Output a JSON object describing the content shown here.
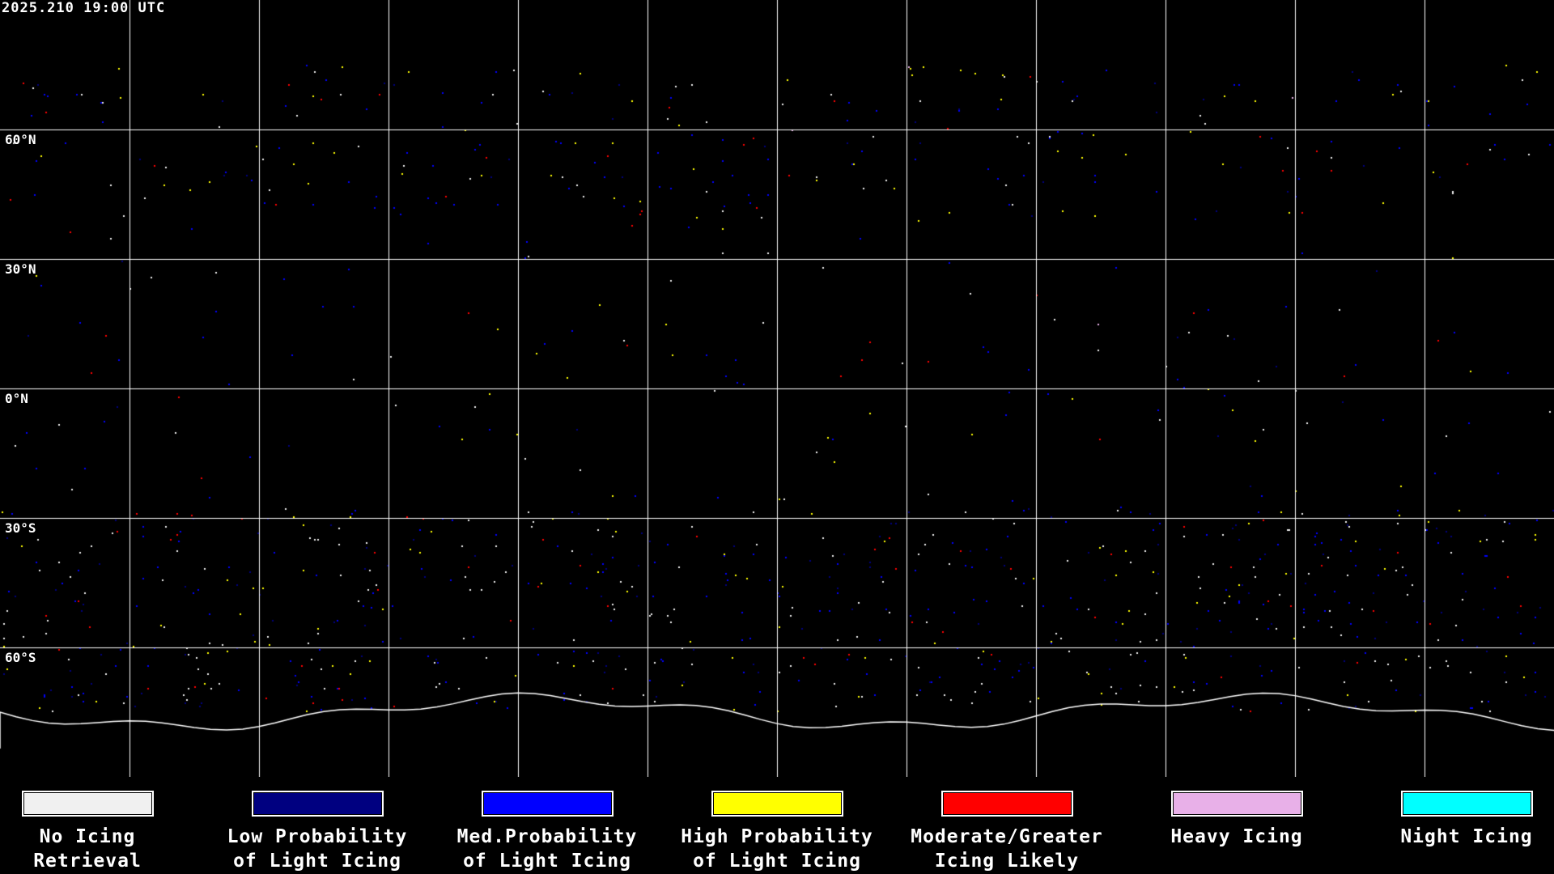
{
  "header": {
    "timestamp": "2025.210 19:00 UTC"
  },
  "map": {
    "projection": "equirectangular",
    "grid_spacing_deg": 30,
    "lat_labels": [
      "60°N",
      "30°N",
      "0°N",
      "30°S",
      "60°S"
    ],
    "background_color": "#000000",
    "coastline_color": "#ffffff",
    "grid_color": "#ffffff"
  },
  "legend": {
    "items": [
      {
        "line1": "No Icing",
        "line2": "Retrieval",
        "color": "#f0f0f0"
      },
      {
        "line1": "Low Probability",
        "line2": "of Light Icing",
        "color": "#000080"
      },
      {
        "line1": "Med.Probability",
        "line2": "of Light Icing",
        "color": "#0000ff"
      },
      {
        "line1": "High Probability",
        "line2": "of Light Icing",
        "color": "#ffff00"
      },
      {
        "line1": "Moderate/Greater",
        "line2": "Icing Likely",
        "color": "#ff0000"
      },
      {
        "line1": "Heavy Icing",
        "line2": "",
        "color": "#e8b0e8"
      },
      {
        "line1": "Night Icing",
        "line2": "",
        "color": "#00ffff"
      }
    ]
  }
}
